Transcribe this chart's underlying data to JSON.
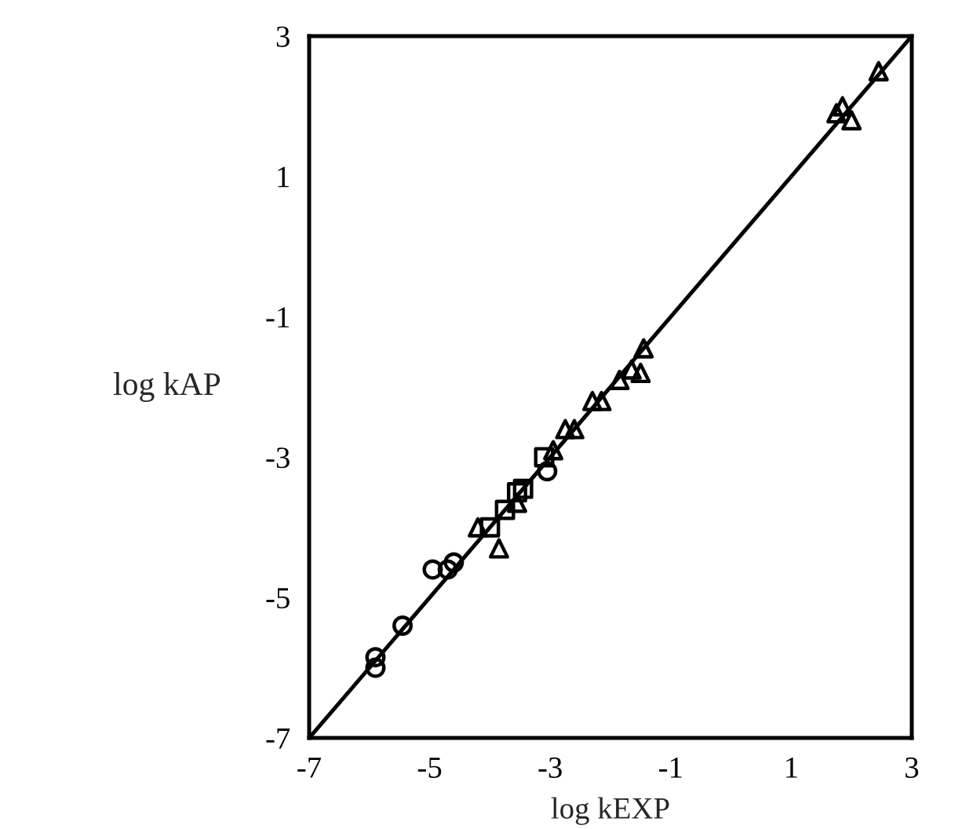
{
  "chart_data": {
    "type": "scatter",
    "xlabel": "log kEXP",
    "ylabel": "log kAP",
    "xlim": [
      -7,
      3
    ],
    "ylim": [
      -7,
      3
    ],
    "xticks": [
      -7,
      -5,
      -3,
      -1,
      1,
      3
    ],
    "yticks": [
      -7,
      -5,
      -3,
      -1,
      1,
      3
    ],
    "grid": false,
    "legend": false,
    "series": [
      {
        "color": "#000000",
        "marker": "circle",
        "x": [
          -5.9,
          -5.9,
          -5.45,
          -4.95,
          -4.7,
          -4.6,
          -3.05
        ],
        "values": [
          -6.0,
          -5.85,
          -5.4,
          -4.6,
          -4.6,
          -4.5,
          -3.2
        ]
      },
      {
        "color": "#000000",
        "marker": "square",
        "x": [
          -4.0,
          -3.75,
          -3.55,
          -3.45,
          -3.1
        ],
        "values": [
          -4.0,
          -3.75,
          -3.5,
          -3.45,
          -3.0
        ]
      },
      {
        "color": "#000000",
        "marker": "triangle",
        "x": [
          -4.2,
          -3.85,
          -3.55,
          -2.95,
          -2.75,
          -2.6,
          -2.3,
          -2.15,
          -1.85,
          -1.65,
          -1.5,
          -1.45,
          1.75,
          1.85,
          2.0,
          2.45
        ],
        "values": [
          -4.0,
          -4.3,
          -3.65,
          -2.9,
          -2.6,
          -2.6,
          -2.2,
          -2.2,
          -1.9,
          -1.75,
          -1.8,
          -1.45,
          1.9,
          2.0,
          1.8,
          2.5
        ]
      },
      {
        "type": "line",
        "color": "#000000",
        "marker": "none",
        "line_style": "solid",
        "x": [
          -7,
          3
        ],
        "values": [
          -7,
          3
        ]
      }
    ]
  }
}
